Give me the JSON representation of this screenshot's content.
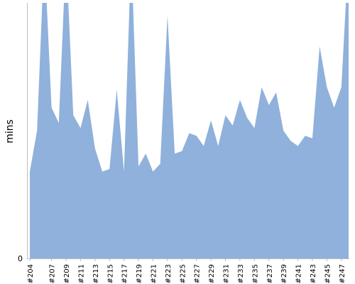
{
  "chart_data": {
    "type": "area",
    "ylabel": "mins",
    "xlabel": "",
    "title": "",
    "color": "#8fb1db",
    "y_tick_labels": [
      "0"
    ],
    "x": [
      "#204",
      "#205",
      "#206",
      "#207",
      "#208",
      "#209",
      "#210",
      "#211",
      "#212",
      "#213",
      "#214",
      "#215",
      "#216",
      "#217",
      "#218",
      "#219",
      "#220",
      "#221",
      "#222",
      "#223",
      "#224",
      "#225",
      "#226",
      "#227",
      "#228",
      "#229",
      "#230",
      "#231",
      "#232",
      "#233",
      "#234",
      "#235",
      "#236",
      "#237",
      "#238",
      "#239",
      "#240",
      "#241",
      "#242",
      "#243",
      "#244",
      "#245",
      "#246",
      "#247",
      "#248"
    ],
    "x_tick_labels": [
      "#204",
      "#207",
      "#209",
      "#211",
      "#213",
      "#215",
      "#217",
      "#219",
      "#221",
      "#223",
      "#225",
      "#227",
      "#229",
      "#231",
      "#233",
      "#235",
      "#237",
      "#239",
      "#241",
      "#243",
      "#245",
      "#247"
    ],
    "values": [
      34,
      50,
      150,
      59,
      53,
      150,
      56,
      51,
      62,
      43,
      34,
      35,
      66,
      34,
      150,
      36,
      41,
      34,
      37,
      95,
      41,
      42,
      49,
      48,
      44,
      54,
      44,
      56,
      52,
      62,
      55,
      51,
      67,
      60,
      65,
      50,
      46,
      44,
      48,
      47,
      83,
      67,
      59,
      67,
      150
    ],
    "ylim": [
      0,
      100
    ]
  }
}
